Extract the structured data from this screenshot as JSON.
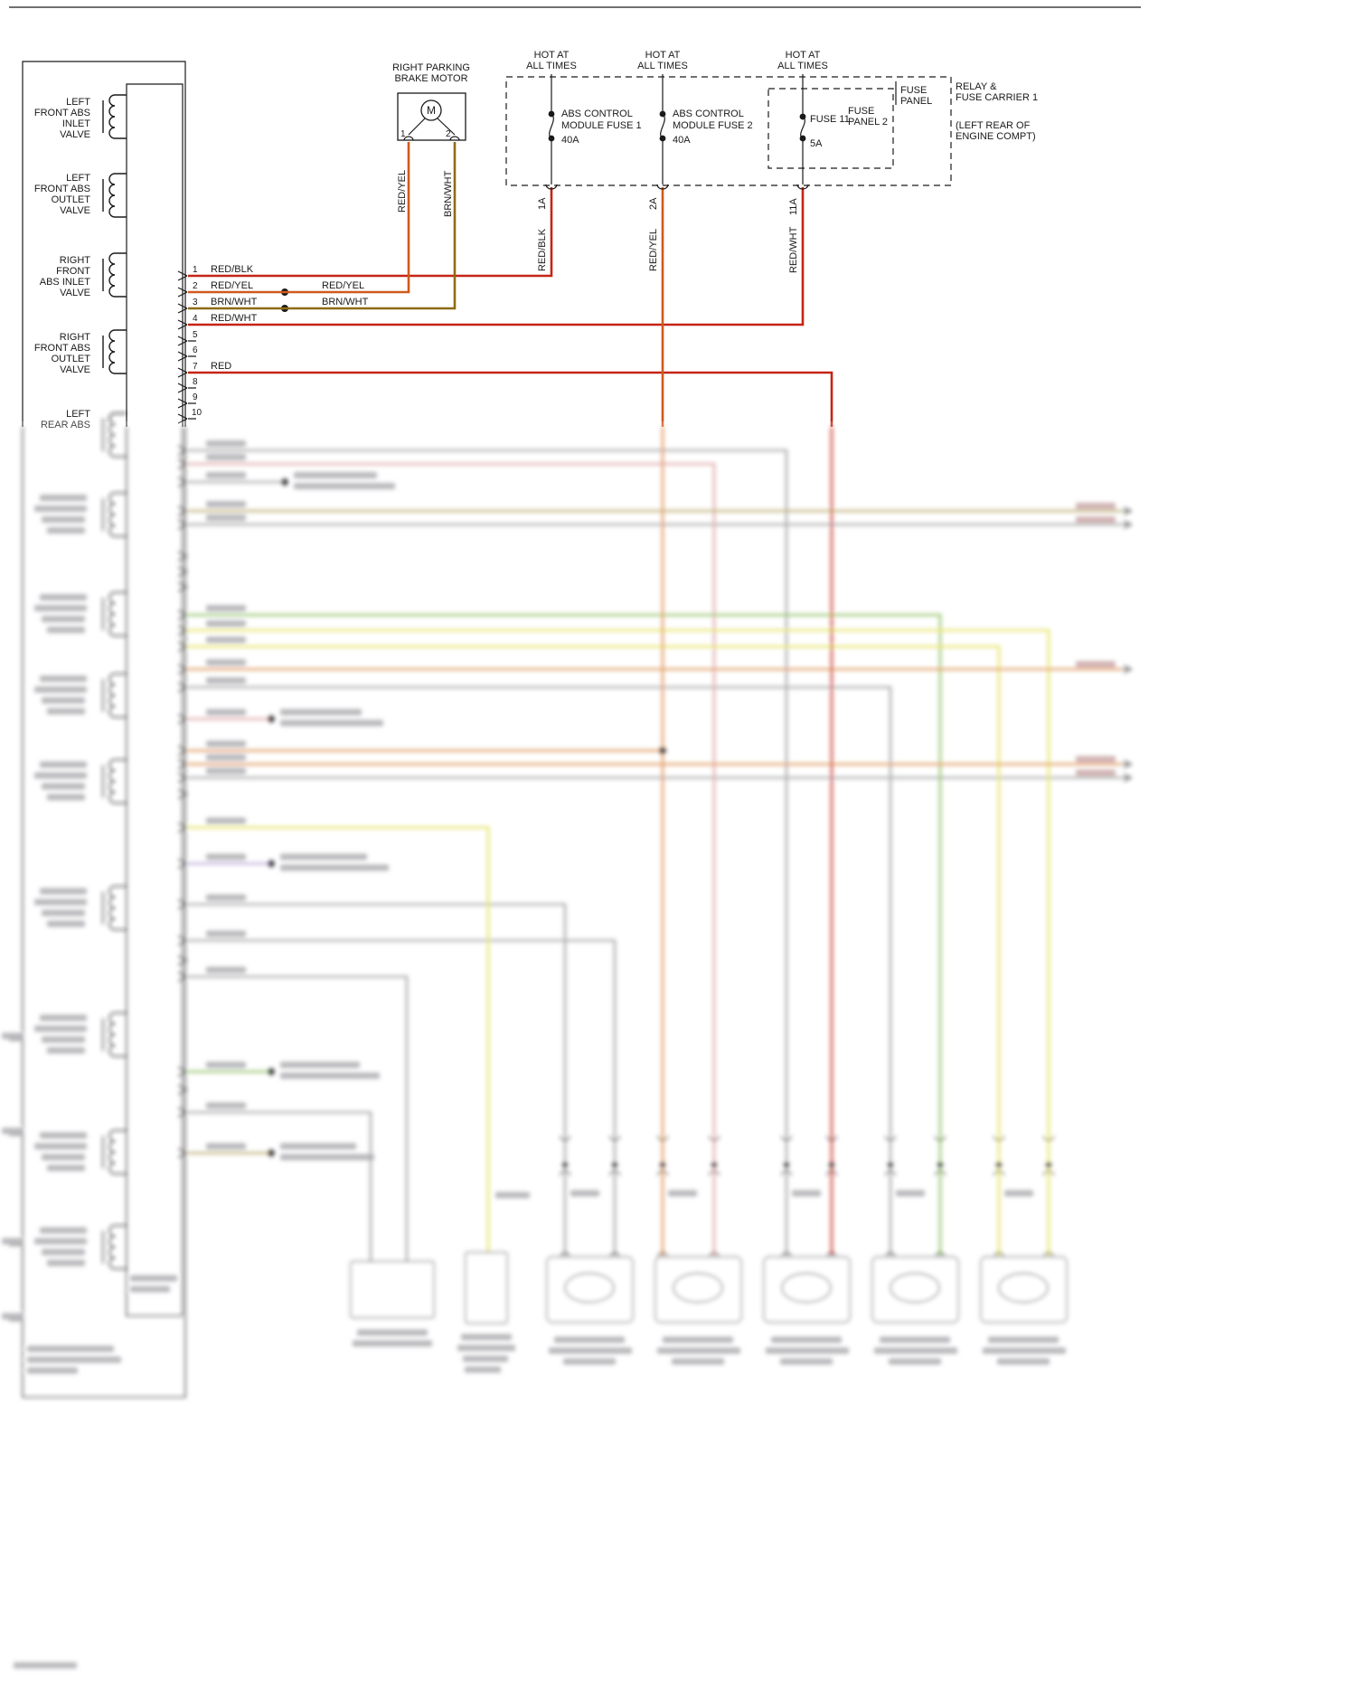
{
  "diagram": {
    "left_connector": {
      "components": [
        {
          "lines": [
            "LEFT",
            "FRONT ABS",
            "INLET",
            "VALVE"
          ]
        },
        {
          "lines": [
            "LEFT",
            "FRONT ABS",
            "OUTLET",
            "VALVE"
          ]
        },
        {
          "lines": [
            "RIGHT",
            "FRONT",
            "ABS INLET",
            "VALVE"
          ]
        },
        {
          "lines": [
            "RIGHT",
            "FRONT ABS",
            "OUTLET",
            "VALVE"
          ]
        },
        {
          "lines": [
            "LEFT",
            "REAR ABS"
          ]
        }
      ],
      "pins": [
        {
          "n": "1",
          "wire": "RED/BLK"
        },
        {
          "n": "2",
          "wire": "RED/YEL",
          "splice": "RED/YEL"
        },
        {
          "n": "3",
          "wire": "BRN/WHT",
          "splice": "BRN/WHT"
        },
        {
          "n": "4",
          "wire": "RED/WHT"
        },
        {
          "n": "5",
          "wire": ""
        },
        {
          "n": "6",
          "wire": ""
        },
        {
          "n": "7",
          "wire": "RED"
        },
        {
          "n": "8",
          "wire": ""
        },
        {
          "n": "9",
          "wire": ""
        },
        {
          "n": "10",
          "wire": ""
        }
      ]
    },
    "parking_brake_motor": {
      "title": [
        "RIGHT PARKING",
        "BRAKE MOTOR"
      ],
      "symbol": "M",
      "pin1": "1",
      "pin2": "2",
      "wire1": "RED/YEL",
      "wire2": "BRN/WHT"
    },
    "power": {
      "columns": [
        {
          "hot": [
            "HOT AT",
            "ALL TIMES"
          ],
          "fuse": [
            "ABS CONTROL",
            "MODULE FUSE 1",
            "40A"
          ],
          "wire": "RED/BLK",
          "circuit": "1A"
        },
        {
          "hot": [
            "HOT AT",
            "ALL TIMES"
          ],
          "fuse": [
            "ABS CONTROL",
            "MODULE FUSE 2",
            "40A"
          ],
          "wire": "RED/YEL",
          "circuit": "2A"
        },
        {
          "hot": [
            "HOT AT",
            "ALL TIMES"
          ],
          "fuse": [
            "FUSE 11",
            "5A"
          ],
          "wire": "RED/WHT",
          "circuit": "11A"
        }
      ],
      "fuse_panel": [
        "FUSE",
        "PANEL"
      ],
      "fuse_panel_2": [
        "FUSE",
        "PANEL 2"
      ],
      "carrier": [
        "RELAY &",
        "FUSE CARRIER 1"
      ],
      "carrier_loc": [
        "(LEFT REAR OF",
        "ENGINE COMPT)"
      ]
    },
    "colors": {
      "ink": "#1a1a1a",
      "red": "#c42415",
      "red_yel": "#cf5a1d",
      "brn_wht": "#8e6b16",
      "red_wht": "#c42415",
      "green": "#86bb55",
      "yellow": "#e4e04b",
      "pink": "#dd9c9c",
      "gray": "#9c9c9c",
      "tan": "#b3a15f",
      "purple": "#b49bd2",
      "orange": "#dd8a47"
    }
  }
}
